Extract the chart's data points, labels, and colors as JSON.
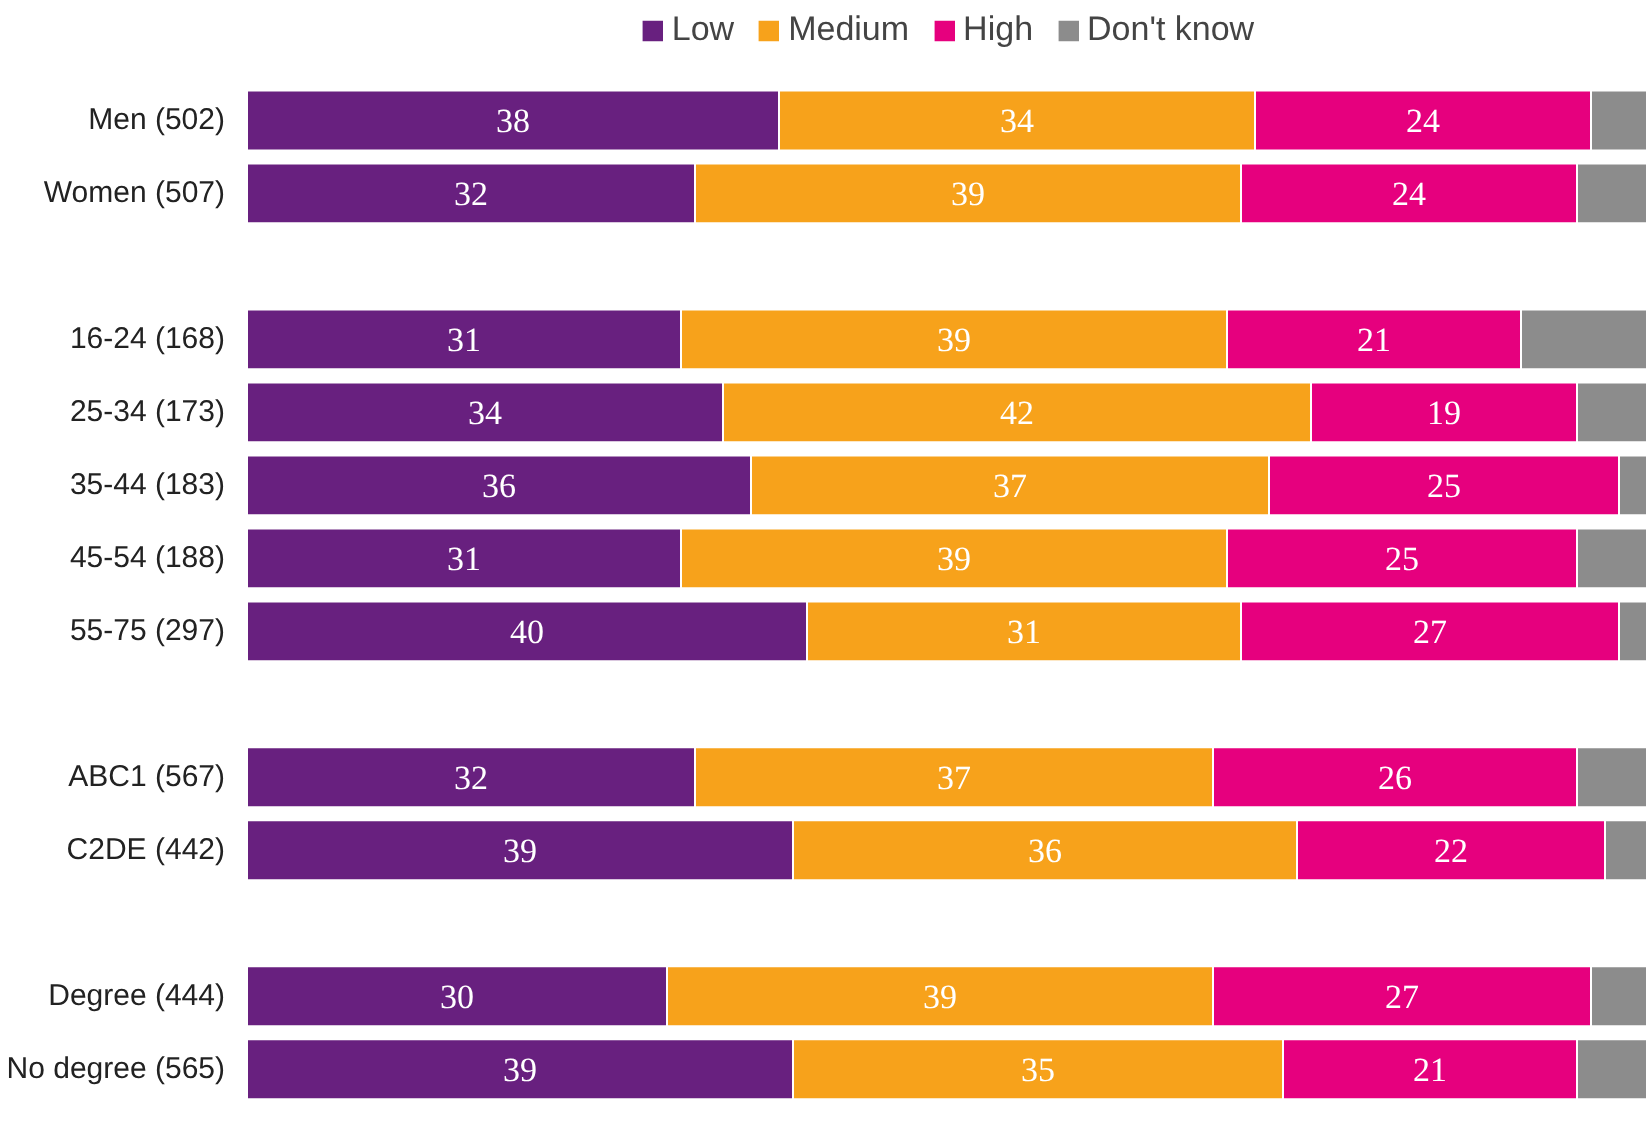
{
  "chart_data": {
    "type": "bar",
    "orientation": "horizontal",
    "stacked": true,
    "legend": "top",
    "categories": [
      "Men (502)",
      "Women (507)",
      null,
      "16-24 (168)",
      "25-34 (173)",
      "35-44 (183)",
      "45-54 (188)",
      "55-75 (297)",
      null,
      "ABC1 (567)",
      "C2DE (442)",
      null,
      "Degree (444)",
      "No degree (565)"
    ],
    "series": [
      {
        "name": "Low",
        "color": "#68207f",
        "values": [
          38,
          32,
          null,
          31,
          34,
          36,
          31,
          40,
          null,
          32,
          39,
          null,
          30,
          39
        ],
        "value_labels": [
          "38",
          "32",
          null,
          "31",
          "34",
          "36",
          "31",
          "40",
          null,
          "32",
          "39",
          null,
          "30",
          "39"
        ]
      },
      {
        "name": "Medium",
        "color": "#f7a21b",
        "values": [
          34,
          39,
          null,
          39,
          42,
          37,
          39,
          31,
          null,
          37,
          36,
          null,
          39,
          35
        ],
        "value_labels": [
          "34",
          "39",
          null,
          "39",
          "42",
          "37",
          "39",
          "31",
          null,
          "37",
          "36",
          null,
          "39",
          "35"
        ]
      },
      {
        "name": "High",
        "color": "#e6007e",
        "values": [
          24,
          24,
          null,
          21,
          19,
          25,
          25,
          27,
          null,
          26,
          22,
          null,
          27,
          21
        ],
        "value_labels": [
          "24",
          "24",
          null,
          "21",
          "19",
          "25",
          "25",
          "27",
          null,
          "26",
          "22",
          null,
          "27",
          "21"
        ]
      },
      {
        "name": "Don't know",
        "color": "#8c8c8c",
        "values": [
          4,
          5,
          null,
          9,
          5,
          2,
          5,
          2,
          null,
          5,
          3,
          null,
          4,
          5
        ]
      }
    ]
  }
}
